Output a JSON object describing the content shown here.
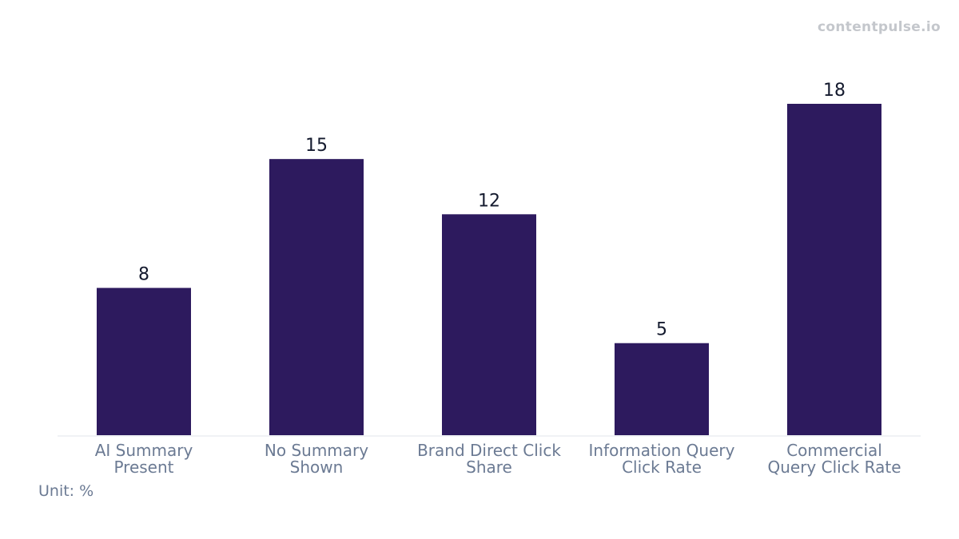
{
  "watermark": "contentpulse.io",
  "unit_note": "Unit: %",
  "colors": {
    "bar": "#2d1a5e",
    "value_text": "#141a2e",
    "tick_text": "#6b7a93",
    "axis": "#eceef2"
  },
  "chart_data": {
    "type": "bar",
    "categories": [
      [
        "AI Summary",
        "Present"
      ],
      [
        "No Summary",
        "Shown"
      ],
      [
        "Brand Direct Click",
        "Share"
      ],
      [
        "Information Query",
        "Click Rate"
      ],
      [
        "Commercial",
        "Query Click Rate"
      ]
    ],
    "values": [
      8,
      15,
      12,
      5,
      18
    ],
    "title": "",
    "xlabel": "",
    "ylabel": "",
    "ylim": [
      0,
      18
    ],
    "grid": false,
    "legend": "none"
  }
}
